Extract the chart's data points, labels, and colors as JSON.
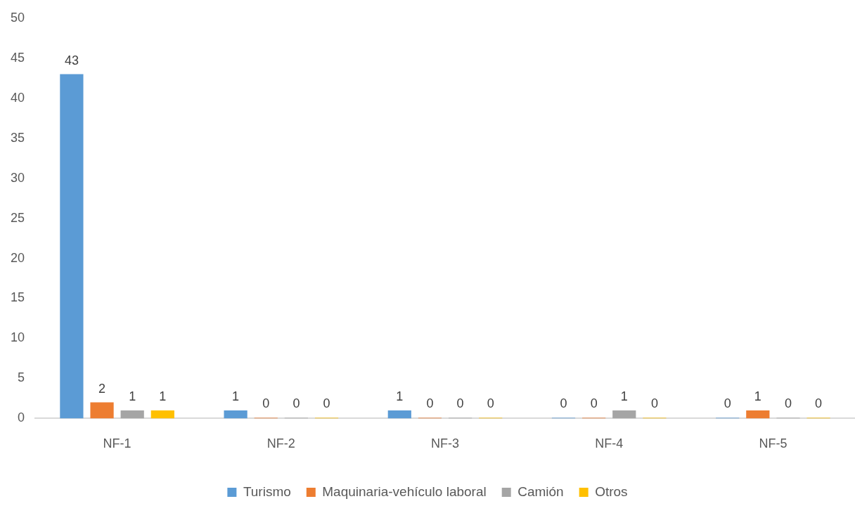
{
  "chart_data": {
    "type": "bar",
    "categories": [
      "NF-1",
      "NF-2",
      "NF-3",
      "NF-4",
      "NF-5"
    ],
    "series": [
      {
        "name": "Turismo",
        "color": "#5b9bd5",
        "values": [
          43,
          1,
          1,
          0,
          0
        ]
      },
      {
        "name": "Maquinaria-vehículo laboral",
        "color": "#ed7d31",
        "values": [
          2,
          0,
          0,
          0,
          1
        ]
      },
      {
        "name": "Camión",
        "color": "#a5a5a5",
        "values": [
          1,
          0,
          0,
          1,
          0
        ]
      },
      {
        "name": "Otros",
        "color": "#ffc000",
        "values": [
          1,
          0,
          0,
          0,
          0
        ]
      }
    ],
    "ylim": [
      0,
      50
    ],
    "yticks": [
      0,
      5,
      10,
      15,
      20,
      25,
      30,
      35,
      40,
      45,
      50
    ],
    "grid": false,
    "legend": "bottom",
    "data_labels": true
  }
}
